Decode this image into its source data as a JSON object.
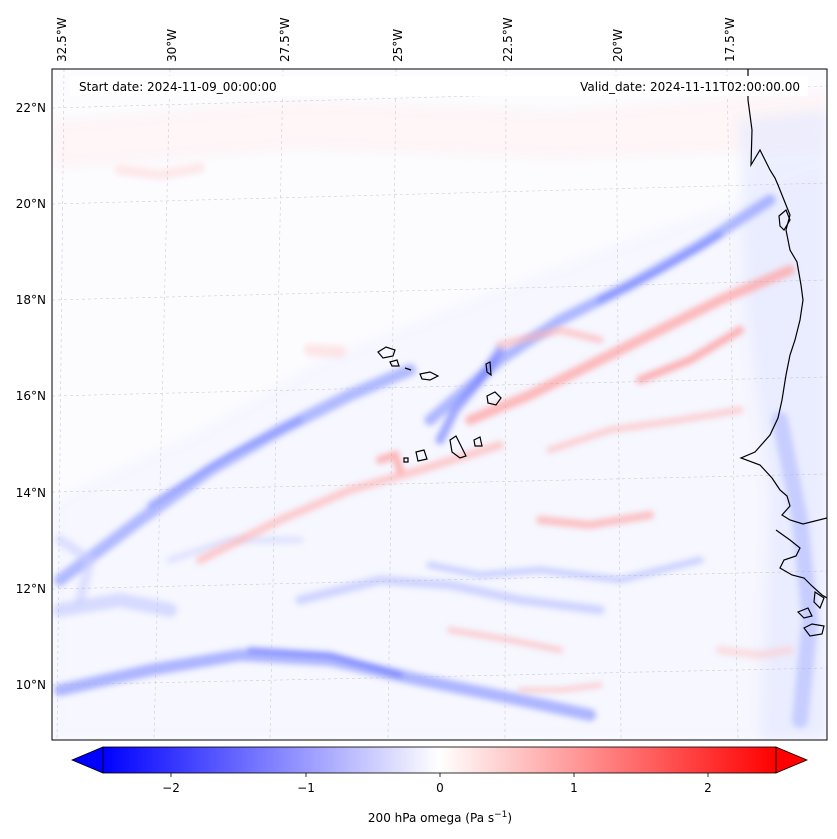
{
  "map": {
    "start_label": "Start date: 2024-11-09_00:00:00",
    "valid_label": "Valid_date: 2024-11-11T02:00:00.00",
    "lon_ticks": [
      "32.5°W",
      "30°W",
      "27.5°W",
      "25°W",
      "22.5°W",
      "20°W",
      "17.5°W"
    ],
    "lat_ticks": [
      "22°N",
      "20°N",
      "18°N",
      "16°N",
      "14°N",
      "12°N",
      "10°N"
    ],
    "field": "200 hPa omega",
    "colors": {
      "negative": "#0000ff",
      "zero": "#ffffff",
      "positive": "#ff0000",
      "coastline": "#000000",
      "gridline": "#b0b0b0"
    }
  },
  "colorbar": {
    "ticks": [
      "−2",
      "−1",
      "0",
      "1",
      "2"
    ],
    "label_main": "200 hPa omega (Pa s",
    "label_exp": "−1",
    "label_close": ")",
    "range": [
      -2.5,
      2.5
    ]
  }
}
